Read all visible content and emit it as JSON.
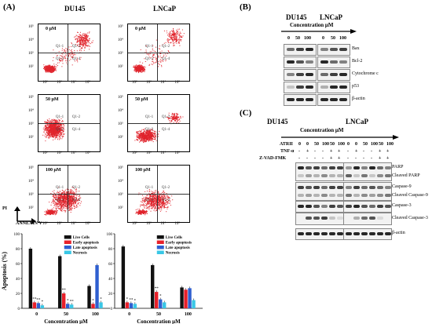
{
  "panelA": {
    "letter": "(A)",
    "col_du": "DU145",
    "col_ln": "LNCaP",
    "row_labels": [
      "0 μM",
      "50 μM",
      "100 μM"
    ],
    "quad_labels": [
      "Q1-1",
      "Q1-2",
      "Q1-3",
      "Q1-4"
    ],
    "y_ticks": [
      "10⁵",
      "10⁴",
      "10³",
      "10²"
    ],
    "x_ticks": [
      "10²",
      "10³",
      "10⁴",
      "10⁵"
    ],
    "axis_pi": "PI",
    "axis_annexin": "ANNEXIN V",
    "bar_ylabel": "Apoptosis (%)",
    "bar_xlabel": "Concentration μM",
    "legend": [
      "Live Cells",
      "Early apoptosis",
      "Late apoptosis",
      "Necrosis"
    ],
    "colors": {
      "live": "#111111",
      "early": "#e8202a",
      "late": "#2f5fd0",
      "necrosis": "#39c7e6"
    }
  },
  "panelB": {
    "letter": "(B)",
    "col_du": "DU145",
    "col_ln": "LNCaP",
    "conc_label": "Concentration μM",
    "lanes": [
      "0",
      "50",
      "100",
      "0",
      "50",
      "100"
    ],
    "proteins": [
      "Bax",
      "Bcl-2",
      "Cytochrome c",
      "p53",
      "β-actin"
    ]
  },
  "panelC": {
    "letter": "(C)",
    "col_du": "DU145",
    "col_ln": "LNCaP",
    "conc_label": "Concentration μM",
    "row_atrii": "ATRII",
    "row_tnf": "TNF-α",
    "row_zvad": "Z-VAD-FMK",
    "atrii_vals": [
      "0",
      "0",
      "50",
      "100",
      "50",
      "100",
      "0",
      "0",
      "50",
      "100",
      "50",
      "100"
    ],
    "tnf_vals": [
      "-",
      "+",
      "-",
      "-",
      "+",
      "+",
      "-",
      "+",
      "-",
      "-",
      "+",
      "+"
    ],
    "zvad_vals": [
      "-",
      "-",
      "-",
      "-",
      "+",
      "+",
      "-",
      "-",
      "-",
      "-",
      "+",
      "+"
    ],
    "proteins": [
      "PARP",
      "Cleaved PARP",
      "Caspase-9",
      "Cleaved Caspase-9",
      "Caspase-3",
      "Cleaved Caspase-3",
      "β-actin"
    ]
  },
  "chart_data": [
    {
      "type": "bar",
      "title": "DU145",
      "categories": [
        "0",
        "50",
        "100"
      ],
      "xlabel": "Concentration μM",
      "ylabel": "Apoptosis (%)",
      "ylim": [
        0,
        100
      ],
      "yticks": [
        0,
        20,
        40,
        60,
        80,
        100
      ],
      "series": [
        {
          "name": "Live Cells",
          "values": [
            80,
            70,
            30
          ]
        },
        {
          "name": "Early apoptosis",
          "values": [
            8,
            20,
            6
          ]
        },
        {
          "name": "Late apoptosis",
          "values": [
            7,
            6,
            58
          ]
        },
        {
          "name": "Necrosis",
          "values": [
            4,
            5,
            8
          ]
        }
      ],
      "annotations": [
        "**",
        "**",
        "*",
        "**",
        "*",
        "**",
        "*",
        "*"
      ]
    },
    {
      "type": "bar",
      "title": "LNCaP",
      "categories": [
        "0",
        "50",
        "100"
      ],
      "xlabel": "Concentration μM",
      "ylabel": "",
      "ylim": [
        0,
        100
      ],
      "yticks": [
        0,
        20,
        40,
        60,
        80,
        100
      ],
      "series": [
        {
          "name": "Live Cells",
          "values": [
            83,
            58,
            28
          ]
        },
        {
          "name": "Early apoptosis",
          "values": [
            8,
            22,
            25
          ]
        },
        {
          "name": "Late apoptosis",
          "values": [
            7,
            12,
            27
          ]
        },
        {
          "name": "Necrosis",
          "values": [
            6,
            8,
            11
          ]
        }
      ],
      "annotations": [
        "*",
        "**",
        "*",
        "**",
        "*"
      ]
    }
  ]
}
